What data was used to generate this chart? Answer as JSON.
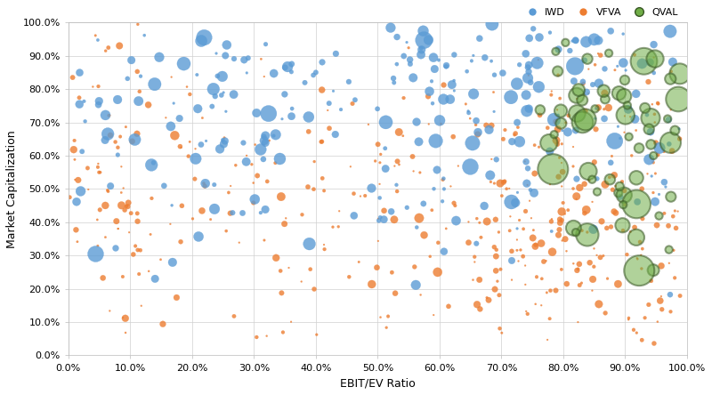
{
  "background_color": "#ffffff",
  "grid_color": "#d0d0d0",
  "xlabel": "EBIT/EV Ratio",
  "ylabel": "Market Capitalization",
  "xlim": [
    0.0,
    1.0
  ],
  "ylim": [
    0.0,
    1.0
  ],
  "xticks": [
    0.0,
    0.1,
    0.2,
    0.3,
    0.4,
    0.5,
    0.6,
    0.7,
    0.8,
    0.9,
    1.0
  ],
  "yticks": [
    0.0,
    0.1,
    0.2,
    0.3,
    0.4,
    0.5,
    0.6,
    0.7,
    0.8,
    0.9,
    1.0
  ],
  "iwd_color": "#5b9bd5",
  "iwd_edge_color": "#5b9bd5",
  "vfva_color": "#ed7d31",
  "vfva_edge_color": "#ed7d31",
  "qval_color": "#70ad47",
  "qval_edge_color": "#375623",
  "legend_labels": [
    "IWD",
    "VFVA",
    "QVAL"
  ],
  "alpha_iwd": 0.8,
  "alpha_vfva": 0.8,
  "alpha_qval": 0.55,
  "tick_label_size": 8,
  "axis_label_size": 9,
  "iwd_base_size": 40,
  "vfva_base_size": 18,
  "qval_base_size": 120
}
